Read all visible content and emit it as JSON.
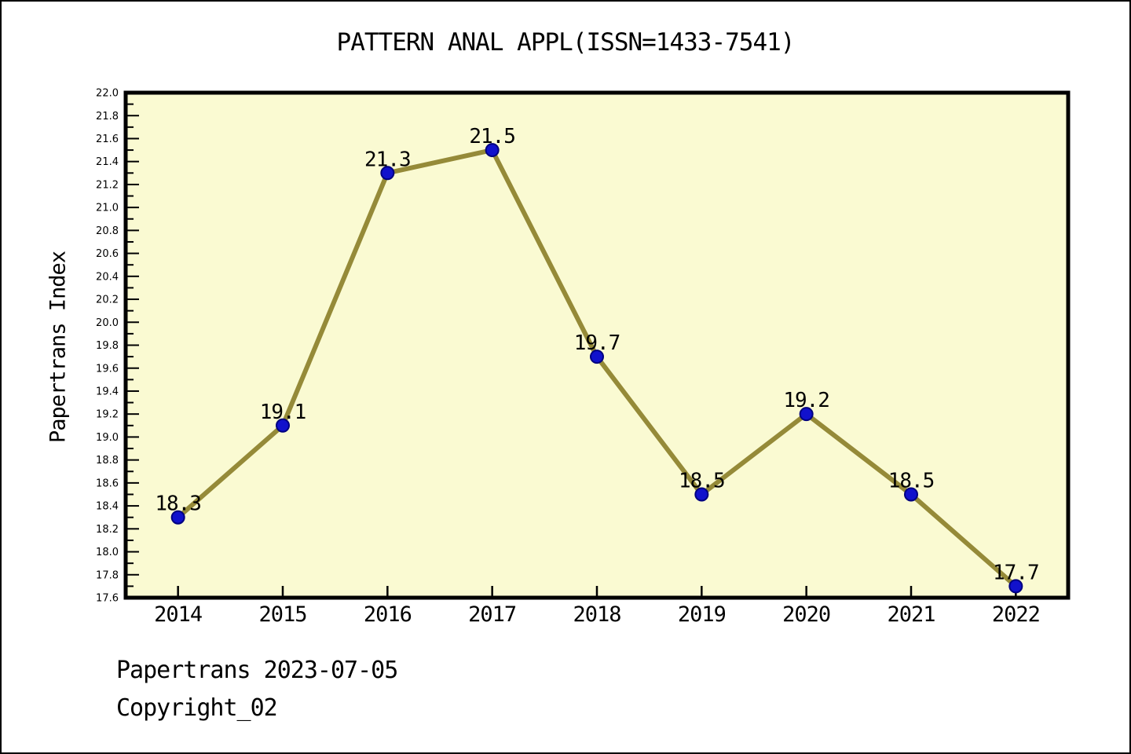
{
  "title": "PATTERN ANAL APPL(ISSN=1433-7541)",
  "footer": {
    "line1": "Papertrans 2023-07-05",
    "line2": "Copyright_02"
  },
  "chart_data": {
    "type": "line",
    "title": "PATTERN ANAL APPL(ISSN=1433-7541)",
    "ylabel": "Papertrans Index",
    "xlabel": "",
    "categories": [
      2014,
      2015,
      2016,
      2017,
      2018,
      2019,
      2020,
      2021,
      2022
    ],
    "values": [
      18.3,
      19.1,
      21.3,
      21.5,
      19.7,
      18.5,
      19.2,
      18.5,
      17.7
    ],
    "series_name": "Papertrans Index",
    "ylim": [
      17.6,
      22.0
    ],
    "ytick_major_step": 0.2,
    "ytick_minor_step": 0.1,
    "xlim": [
      2013.5,
      2022.5
    ],
    "grid": false,
    "legend_position": "none",
    "point_labels_visible": true,
    "colors": {
      "plot_background": "#FAFAD2",
      "line": "#958A38",
      "marker_fill": "#1111CC",
      "marker_edge": "#000080",
      "axis": "#000000",
      "text": "#000000",
      "page_background": "#FFFFFF"
    }
  }
}
